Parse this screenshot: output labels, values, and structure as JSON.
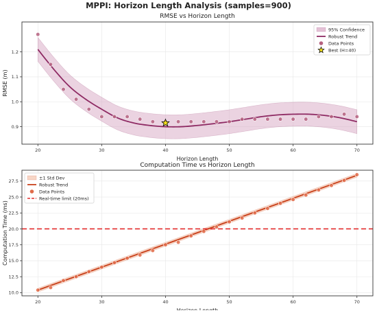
{
  "suptitle": "MPPI: Horizon Length Analysis (samples=900)",
  "chart_data": [
    {
      "type": "scatter",
      "title": "RMSE vs Horizon Length",
      "xlabel": "Horizon Length",
      "ylabel": "RMSE (m)",
      "xlim": [
        17.5,
        72.5
      ],
      "ylim": [
        0.83,
        1.32
      ],
      "xticks": [
        20,
        30,
        40,
        50,
        60,
        70
      ],
      "yticks": [
        0.9,
        1.0,
        1.1,
        1.2
      ],
      "tick_decimals": 1,
      "grid": true,
      "legend_position": "top-right",
      "colors": {
        "band": "#d8a8c4",
        "trend": "#8e2a63",
        "points": "#b5607f",
        "star": "#f5e11b"
      },
      "legend": [
        "95% Confidence",
        "Robust Trend",
        "Data Points",
        "Best (H=40)"
      ],
      "points": {
        "x": [
          20,
          22,
          24,
          26,
          28,
          30,
          32,
          34,
          36,
          38,
          40,
          42,
          44,
          46,
          48,
          50,
          52,
          54,
          56,
          58,
          60,
          62,
          64,
          66,
          68,
          70
        ],
        "y": [
          1.27,
          1.15,
          1.05,
          1.01,
          0.97,
          0.94,
          0.94,
          0.94,
          0.93,
          0.92,
          0.92,
          0.92,
          0.92,
          0.92,
          0.92,
          0.92,
          0.93,
          0.93,
          0.93,
          0.93,
          0.93,
          0.93,
          0.94,
          0.94,
          0.95,
          0.94
        ]
      },
      "trend": {
        "x": [
          20,
          22.5,
          25,
          27.5,
          30,
          32.5,
          35,
          37.5,
          40,
          42.5,
          45,
          47.5,
          50,
          52.5,
          55,
          57.5,
          60,
          62.5,
          65,
          67.5,
          70
        ],
        "y": [
          1.21,
          1.13,
          1.06,
          1.01,
          0.97,
          0.935,
          0.915,
          0.905,
          0.9,
          0.9,
          0.905,
          0.912,
          0.92,
          0.93,
          0.94,
          0.947,
          0.95,
          0.95,
          0.945,
          0.935,
          0.92
        ]
      },
      "band_halfwidth": 0.048,
      "best": {
        "x": 40,
        "y": 0.915,
        "label": "Best (H=40)"
      }
    },
    {
      "type": "line",
      "title": "Computation Time vs Horizon Length",
      "xlabel": "Horizon Length",
      "ylabel": "Computation Time (ms)",
      "xlim": [
        17.5,
        72.5
      ],
      "ylim": [
        9.5,
        29.2
      ],
      "xticks": [
        20,
        30,
        40,
        50,
        60,
        70
      ],
      "yticks": [
        10.0,
        12.5,
        15.0,
        17.5,
        20.0,
        22.5,
        25.0,
        27.5
      ],
      "tick_decimals": 1,
      "grid": true,
      "legend_position": "top-left",
      "colors": {
        "band": "#f4c4ae",
        "trend": "#c8401b",
        "points": "#e06b49",
        "limit": "#e32b2b"
      },
      "legend": [
        "±1 Std Dev",
        "Robust Trend",
        "Data Points",
        "Real-time limit (20ms)"
      ],
      "points": {
        "x": [
          20,
          22,
          24,
          26,
          28,
          30,
          32,
          34,
          36,
          38,
          40,
          42,
          44,
          46,
          48,
          50,
          52,
          54,
          56,
          58,
          60,
          62,
          64,
          66,
          68,
          70
        ],
        "y": [
          10.4,
          10.8,
          11.9,
          12.5,
          13.3,
          14.0,
          14.7,
          15.4,
          15.9,
          16.6,
          17.5,
          17.9,
          18.9,
          19.6,
          20.3,
          21.1,
          21.7,
          22.5,
          23.2,
          24.0,
          24.6,
          25.3,
          26.1,
          26.8,
          27.6,
          28.5
        ]
      },
      "trend": {
        "x": [
          20,
          70
        ],
        "y": [
          10.4,
          28.4
        ]
      },
      "band_halfwidth": 0.3,
      "limit_value": 20
    }
  ]
}
